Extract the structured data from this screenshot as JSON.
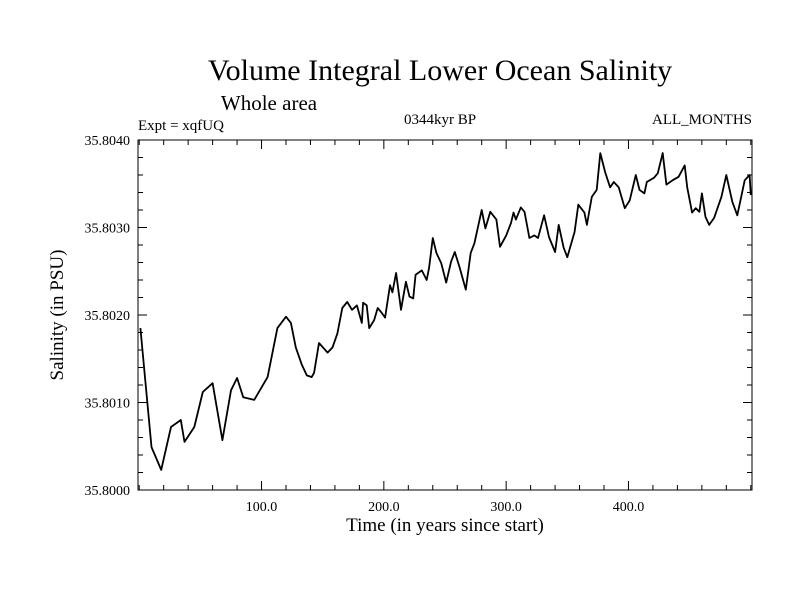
{
  "chart_data": {
    "type": "line",
    "title": "Volume Integral Lower Ocean Salinity",
    "subtitle": "Whole area",
    "left_annotation": "Expt = xqfUQ",
    "center_annotation": "0344kyr BP",
    "right_annotation": "ALL_MONTHS",
    "xlabel": "Time (in years since start)",
    "ylabel": "Salinity (in PSU)",
    "xlim": [
      -1,
      501
    ],
    "ylim": [
      35.8,
      35.804
    ],
    "xticks": [
      100,
      200,
      300,
      400
    ],
    "xtick_labels": [
      "100.0",
      "200.0",
      "300.0",
      "400.0"
    ],
    "x_minor_step": 20,
    "yticks": [
      35.8,
      35.801,
      35.802,
      35.803,
      35.804
    ],
    "ytick_labels": [
      "35.8000",
      "35.8010",
      "35.8020",
      "35.8030",
      "35.8040"
    ],
    "y_minor_step": 0.0002,
    "grid": false,
    "legend": "none",
    "series": [
      {
        "name": "Salinity",
        "color": "#000000",
        "x": [
          1,
          10,
          18,
          26,
          34,
          37,
          45,
          52,
          60,
          68,
          75,
          80,
          85,
          94,
          105,
          113,
          120,
          124,
          128,
          133,
          137,
          141,
          143,
          147,
          154,
          158,
          162,
          166,
          170,
          174,
          178,
          182,
          183,
          186,
          188,
          192,
          195,
          198,
          201,
          205,
          207,
          210,
          214,
          218,
          221,
          224,
          226,
          231,
          235,
          237,
          240,
          243,
          247,
          251,
          255,
          258,
          262,
          267,
          271,
          274,
          280,
          283,
          287,
          292,
          295,
          300,
          304,
          306,
          308,
          312,
          315,
          319,
          323,
          326,
          331,
          335,
          340,
          343,
          347,
          350,
          356,
          359,
          364,
          366,
          370,
          374,
          377,
          381,
          385,
          388,
          392,
          397,
          401,
          406,
          409,
          413,
          415,
          421,
          424,
          428,
          431,
          436,
          441,
          446,
          448,
          452,
          455,
          458,
          460,
          463,
          466,
          470,
          476,
          480,
          485,
          489,
          495,
          499,
          500
        ],
        "values": [
          35.80185,
          35.80049,
          35.80023,
          35.80072,
          35.8008,
          35.80055,
          35.80072,
          35.80112,
          35.80122,
          35.80057,
          35.80114,
          35.80128,
          35.80106,
          35.80103,
          35.80129,
          35.80185,
          35.80198,
          35.80191,
          35.80163,
          35.80143,
          35.80131,
          35.80129,
          35.80134,
          35.80168,
          35.80157,
          35.80163,
          35.80179,
          35.80208,
          35.80215,
          35.80206,
          35.80211,
          35.80191,
          35.80214,
          35.80211,
          35.80185,
          35.80194,
          35.80208,
          35.80203,
          35.80197,
          35.80234,
          35.80226,
          35.80248,
          35.80206,
          35.80238,
          35.80221,
          35.80219,
          35.80246,
          35.80251,
          35.8024,
          35.80254,
          35.80288,
          35.80271,
          35.80259,
          35.80237,
          35.80261,
          35.80272,
          35.80254,
          35.80229,
          35.80271,
          35.80282,
          35.8032,
          35.80299,
          35.80318,
          35.80309,
          35.80278,
          35.80291,
          35.80305,
          35.80317,
          35.80309,
          35.80323,
          35.80318,
          35.80288,
          35.80291,
          35.80288,
          35.80314,
          35.80289,
          35.80272,
          35.80303,
          35.80277,
          35.80266,
          35.80295,
          35.80326,
          35.80317,
          35.80303,
          35.80335,
          35.80343,
          35.80385,
          35.80363,
          35.80346,
          35.80352,
          35.80346,
          35.80322,
          35.80331,
          35.8036,
          35.80343,
          35.80339,
          35.80352,
          35.80357,
          35.80362,
          35.80385,
          35.80349,
          35.80354,
          35.80358,
          35.80371,
          35.80346,
          35.80317,
          35.80322,
          35.80318,
          35.80339,
          35.80312,
          35.80303,
          35.80311,
          35.80335,
          35.8036,
          35.80329,
          35.80314,
          35.80354,
          35.8036,
          35.80337
        ]
      }
    ]
  }
}
